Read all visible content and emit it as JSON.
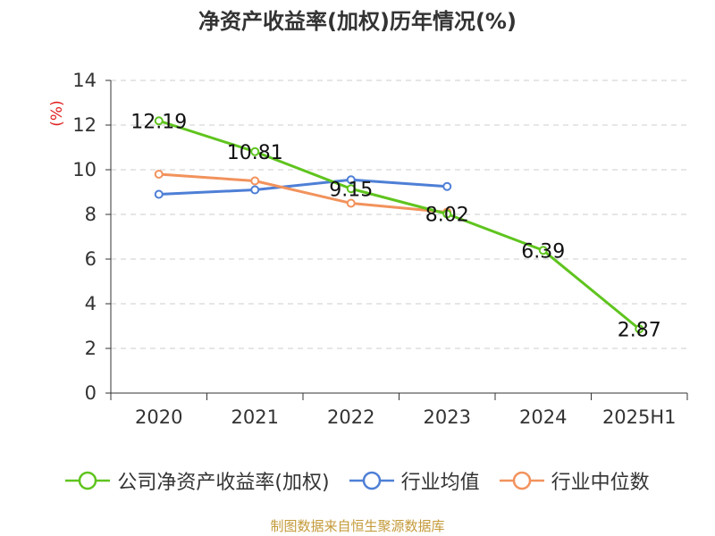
{
  "page": {
    "title": "净资产收益率(加权)历年情况(%)",
    "source": "制图数据来自恒生聚源数据库"
  },
  "chart_data": {
    "type": "line",
    "title": "净资产收益率(加权)历年情况(%)",
    "xlabel": "",
    "ylabel": "(%)",
    "categories": [
      "2020",
      "2021",
      "2022",
      "2023",
      "2024",
      "2025H1"
    ],
    "ylim": [
      0,
      14
    ],
    "yticks": [
      0,
      2,
      4,
      6,
      8,
      10,
      12,
      14
    ],
    "grid": true,
    "legend_position": "bottom",
    "series": [
      {
        "name": "公司净资产收益率(加权)",
        "color": "#5fc41e",
        "values": [
          12.19,
          10.81,
          9.15,
          8.02,
          6.39,
          2.87
        ],
        "data_labels": true
      },
      {
        "name": "行业均值",
        "color": "#4e7fd6",
        "values": [
          8.9,
          9.1,
          9.55,
          9.25,
          null,
          null
        ],
        "data_labels": false
      },
      {
        "name": "行业中位数",
        "color": "#f2925c",
        "values": [
          9.8,
          9.5,
          8.5,
          8.1,
          null,
          null
        ],
        "data_labels": false
      }
    ]
  }
}
